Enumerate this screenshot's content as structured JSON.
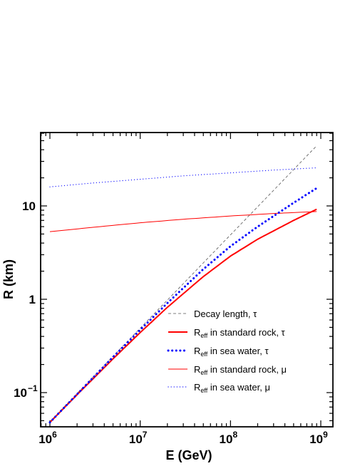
{
  "chart_data": {
    "type": "line",
    "xlabel": "E (GeV)",
    "ylabel": "R (km)",
    "xscale": "log",
    "yscale": "log",
    "xlim": [
      1000000,
      1000000000
    ],
    "ylim": [
      0.04,
      60
    ],
    "x_ticks": [
      {
        "value": 1000000,
        "base": "10",
        "exp": "6"
      },
      {
        "value": 10000000,
        "base": "10",
        "exp": "7"
      },
      {
        "value": 100000000,
        "base": "10",
        "exp": "8"
      },
      {
        "value": 1000000000,
        "base": "10",
        "exp": "9"
      }
    ],
    "y_ticks": [
      {
        "value": 0.1,
        "base": "10",
        "exp": "−1"
      },
      {
        "value": 1,
        "base": "1",
        "exp": ""
      },
      {
        "value": 10,
        "base": "10",
        "exp": ""
      }
    ],
    "grid": false,
    "legend_position": "bottom-right",
    "series": [
      {
        "name": "Decay length, τ",
        "label_parts": {
          "main": "Decay length, τ",
          "sub": "",
          "rest": ""
        },
        "color": "#555555",
        "width": 0.8,
        "dash": "4,3",
        "linecap": "butt",
        "x": [
          1000000,
          3000000,
          10000000,
          30000000,
          100000000,
          300000000,
          900000000
        ],
        "y": [
          0.049,
          0.147,
          0.49,
          1.47,
          4.9,
          14.7,
          44.1
        ]
      },
      {
        "name": "Reff in standard rock, τ",
        "label_parts": {
          "main": "R",
          "sub": "eff",
          "rest": " in standard rock, τ"
        },
        "color": "#ff0000",
        "width": 2,
        "dash": "",
        "linecap": "butt",
        "x": [
          1000000,
          2000000,
          5000000,
          10000000,
          20000000,
          50000000,
          100000000,
          200000000,
          500000000,
          900000000
        ],
        "y": [
          0.048,
          0.095,
          0.23,
          0.44,
          0.82,
          1.75,
          2.9,
          4.4,
          7.0,
          9.2
        ]
      },
      {
        "name": "Reff in sea water, τ",
        "label_parts": {
          "main": "R",
          "sub": "eff",
          "rest": " in sea water, τ"
        },
        "color": "#0000ff",
        "width": 3,
        "dash": "0.1,5.5",
        "linecap": "round",
        "x": [
          1000000,
          2000000,
          5000000,
          10000000,
          20000000,
          50000000,
          100000000,
          200000000,
          500000000,
          900000000
        ],
        "y": [
          0.048,
          0.096,
          0.24,
          0.47,
          0.91,
          2.1,
          3.7,
          6.0,
          10.8,
          15.5
        ]
      },
      {
        "name": "Reff in standard rock, μ",
        "label_parts": {
          "main": "R",
          "sub": "eff",
          "rest": " in standard rock, μ"
        },
        "color": "#ff0000",
        "width": 1,
        "dash": "",
        "linecap": "butt",
        "x": [
          1000000,
          3000000,
          10000000,
          30000000,
          100000000,
          300000000,
          900000000
        ],
        "y": [
          5.3,
          5.9,
          6.6,
          7.2,
          7.8,
          8.3,
          8.7
        ]
      },
      {
        "name": "Reff in sea water, μ",
        "label_parts": {
          "main": "R",
          "sub": "eff",
          "rest": " in sea water, μ"
        },
        "color": "#0000ff",
        "width": 1.2,
        "dash": "0.1,4",
        "linecap": "round",
        "x": [
          1000000,
          3000000,
          10000000,
          30000000,
          100000000,
          300000000,
          900000000
        ],
        "y": [
          16.0,
          17.6,
          19.3,
          21.0,
          22.6,
          24.2,
          25.6
        ]
      }
    ]
  }
}
